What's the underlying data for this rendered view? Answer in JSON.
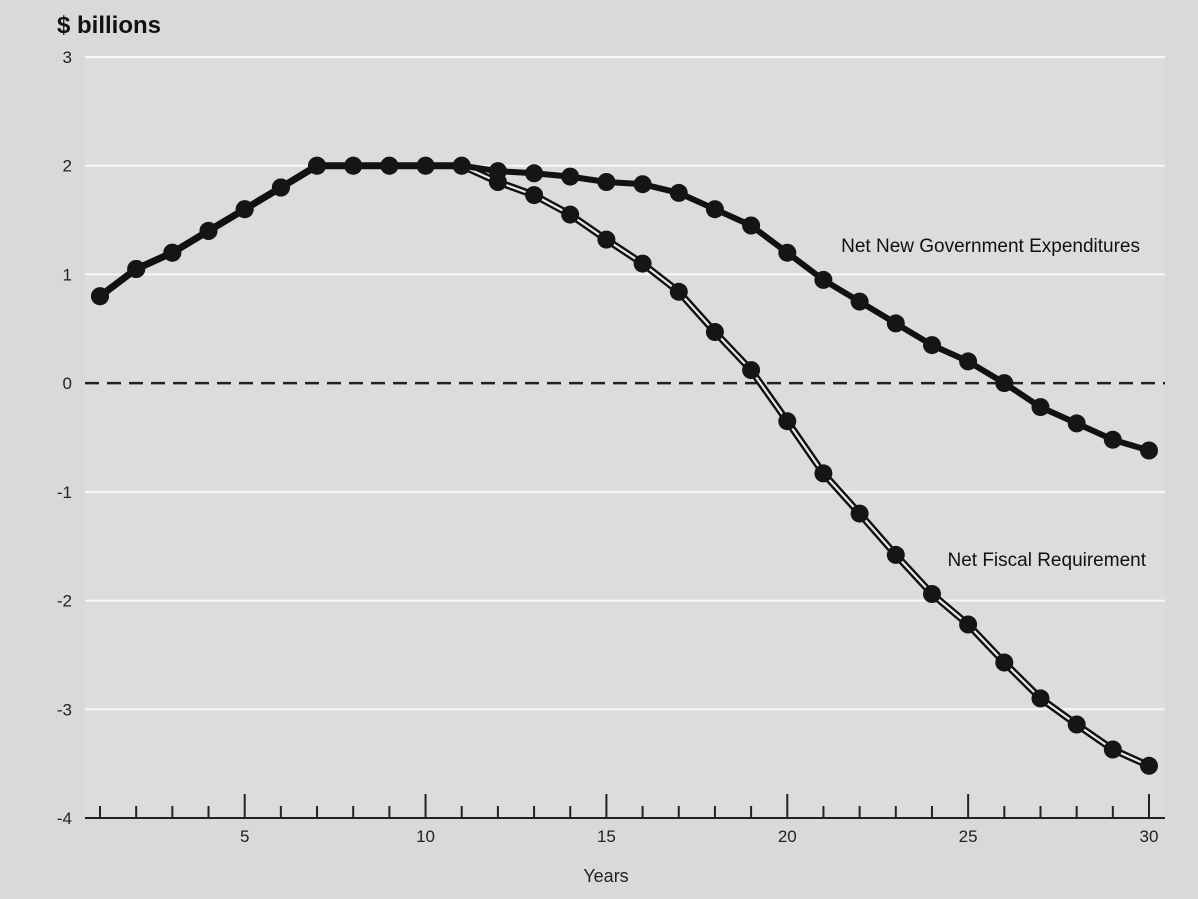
{
  "chart_data": {
    "type": "line",
    "y_unit_label": "$ billions",
    "xlabel": "Years",
    "ylim": [
      -4,
      3
    ],
    "xlim": [
      1,
      30
    ],
    "y_ticks": [
      "3",
      "2",
      "1",
      "0",
      "-1",
      "-2",
      "-3",
      "-4"
    ],
    "x_tick_labels": [
      "5",
      "10",
      "15",
      "20",
      "25",
      "30"
    ],
    "grid": true,
    "zero_line": "dashed",
    "x": [
      1,
      2,
      3,
      4,
      5,
      6,
      7,
      8,
      9,
      10,
      11,
      12,
      13,
      14,
      15,
      16,
      17,
      18,
      19,
      20,
      21,
      22,
      23,
      24,
      25,
      26,
      27,
      28,
      29,
      30
    ],
    "series": [
      {
        "name": "Net New Government Expenditures",
        "color": "#111111",
        "style": "solid",
        "values": [
          0.8,
          1.05,
          1.2,
          1.4,
          1.6,
          1.8,
          2.0,
          2.0,
          2.0,
          2.0,
          2.0,
          1.95,
          1.93,
          1.9,
          1.85,
          1.83,
          1.75,
          1.6,
          1.45,
          1.2,
          0.95,
          0.75,
          0.55,
          0.35,
          0.2,
          0.0,
          -0.22,
          -0.37,
          -0.52,
          -0.62
        ]
      },
      {
        "name": "Net Fiscal Requirement",
        "color": "#111111",
        "style": "double",
        "values": [
          0.8,
          1.05,
          1.2,
          1.4,
          1.6,
          1.8,
          2.0,
          2.0,
          2.0,
          2.0,
          2.0,
          1.85,
          1.73,
          1.55,
          1.32,
          1.1,
          0.84,
          0.47,
          0.12,
          -0.35,
          -0.83,
          -1.2,
          -1.58,
          -1.94,
          -2.22,
          -2.57,
          -2.9,
          -3.14,
          -3.37,
          -3.52
        ]
      }
    ]
  }
}
